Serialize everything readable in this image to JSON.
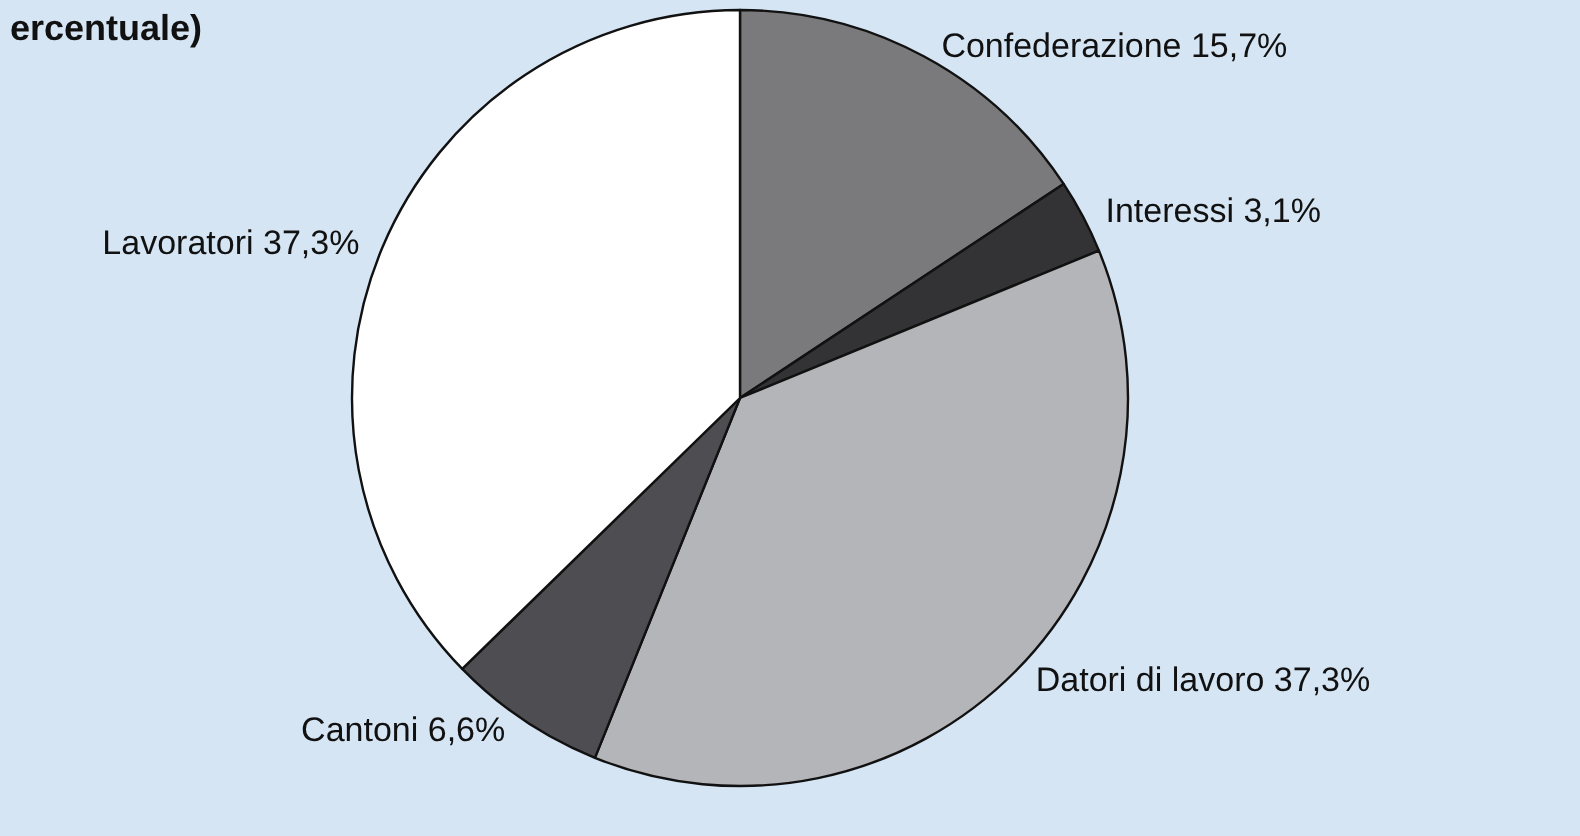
{
  "chart_data": {
    "type": "pie",
    "title": "ercentuale)",
    "categories": [
      "Confederazione",
      "Interessi",
      "Datori di lavoro",
      "Cantoni",
      "Lavoratori"
    ],
    "values": [
      15.7,
      3.1,
      37.3,
      6.6,
      37.3
    ],
    "value_labels": [
      "15,7%",
      "3,1%",
      "37,3%",
      "6,6%",
      "37,3%"
    ],
    "colors": [
      "#7a7a7c",
      "#333336",
      "#b4b5b8",
      "#4e4e52",
      "#ffffff"
    ],
    "legend": false
  }
}
